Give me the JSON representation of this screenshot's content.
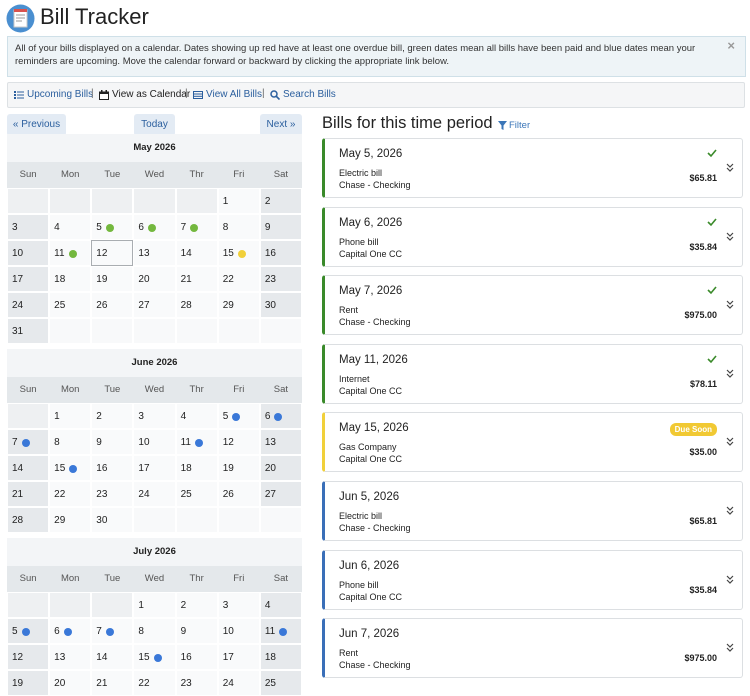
{
  "header": {
    "title": "Bill Tracker"
  },
  "notice": {
    "text": "All of your bills displayed on a calendar. Dates showing up red have at least one overdue bill, green dates mean all bills have been paid and blue dates mean your reminders are upcoming. Move the calendar forward or backward by clicking the appropriate link below.",
    "close": "×"
  },
  "nav": [
    {
      "label": "Upcoming Bills",
      "link": true
    },
    {
      "label": "View as Calendar",
      "link": false
    },
    {
      "label": "View All Bills",
      "link": true
    },
    {
      "label": "Search Bills",
      "link": true
    }
  ],
  "calendar": {
    "previous": "« Previous",
    "today": "Today",
    "next": "Next »",
    "weekdays": [
      "Sun",
      "Mon",
      "Tue",
      "Wed",
      "Thr",
      "Fri",
      "Sat"
    ],
    "months": [
      {
        "title": "May 2026",
        "weeks": [
          [
            null,
            null,
            null,
            null,
            null,
            1,
            2
          ],
          [
            3,
            4,
            {
              "day": 5,
              "dot": "#74b83e"
            },
            {
              "day": 6,
              "dot": "#74b83e"
            },
            {
              "day": 7,
              "dot": "#74b83e"
            },
            8,
            9
          ],
          [
            10,
            {
              "day": 11,
              "dot": "#74b83e"
            },
            {
              "day": 12,
              "today": true
            },
            13,
            14,
            {
              "day": 15,
              "dot": "#f1d03a"
            },
            16
          ],
          [
            17,
            18,
            19,
            20,
            21,
            22,
            23
          ],
          [
            24,
            25,
            26,
            27,
            28,
            29,
            30
          ],
          [
            31,
            null,
            null,
            null,
            null,
            null,
            null
          ]
        ]
      },
      {
        "title": "June 2026",
        "weeks": [
          [
            null,
            1,
            2,
            3,
            4,
            {
              "day": 5,
              "dot": "#3a78d8"
            },
            {
              "day": 6,
              "dot": "#3a78d8"
            }
          ],
          [
            {
              "day": 7,
              "dot": "#3a78d8"
            },
            8,
            9,
            10,
            {
              "day": 11,
              "dot": "#3a78d8"
            },
            12,
            13
          ],
          [
            14,
            {
              "day": 15,
              "dot": "#3a78d8"
            },
            16,
            17,
            18,
            19,
            20
          ],
          [
            21,
            22,
            23,
            24,
            25,
            26,
            27
          ],
          [
            28,
            29,
            30,
            null,
            null,
            null,
            null
          ]
        ]
      },
      {
        "title": "July 2026",
        "weeks": [
          [
            null,
            null,
            null,
            1,
            2,
            3,
            4
          ],
          [
            {
              "day": 5,
              "dot": "#3a78d8"
            },
            {
              "day": 6,
              "dot": "#3a78d8"
            },
            {
              "day": 7,
              "dot": "#3a78d8"
            },
            8,
            9,
            10,
            {
              "day": 11,
              "dot": "#3a78d8"
            }
          ],
          [
            12,
            13,
            14,
            {
              "day": 15,
              "dot": "#3a78d8"
            },
            16,
            17,
            18
          ],
          [
            19,
            20,
            21,
            22,
            23,
            24,
            25
          ]
        ]
      }
    ]
  },
  "bills": {
    "title": "Bills for this time period",
    "filter": "Filter",
    "items": [
      {
        "date": "May 5, 2026",
        "name": "Electric bill",
        "account": "Chase - Checking",
        "amount": "$65.81",
        "color": "#3a8a2a",
        "paid": true
      },
      {
        "date": "May 6, 2026",
        "name": "Phone bill",
        "account": "Capital One CC",
        "amount": "$35.84",
        "color": "#3a8a2a",
        "paid": true
      },
      {
        "date": "May 7, 2026",
        "name": "Rent",
        "account": "Chase - Checking",
        "amount": "$975.00",
        "color": "#3a8a2a",
        "paid": true
      },
      {
        "date": "May 11, 2026",
        "name": "Internet",
        "account": "Capital One CC",
        "amount": "$78.11",
        "color": "#3a8a2a",
        "paid": true
      },
      {
        "date": "May 15, 2026",
        "name": "Gas Company",
        "account": "Capital One CC",
        "amount": "$35.00",
        "color": "#f1d03a",
        "paid": false,
        "badge": "Due Soon"
      },
      {
        "date": "Jun 5, 2026",
        "name": "Electric bill",
        "account": "Chase - Checking",
        "amount": "$65.81",
        "color": "#3a6fb8",
        "paid": false
      },
      {
        "date": "Jun 6, 2026",
        "name": "Phone bill",
        "account": "Capital One CC",
        "amount": "$35.84",
        "color": "#3a6fb8",
        "paid": false
      },
      {
        "date": "Jun 7, 2026",
        "name": "Rent",
        "account": "Chase - Checking",
        "amount": "$975.00",
        "color": "#3a6fb8",
        "paid": false
      }
    ]
  }
}
